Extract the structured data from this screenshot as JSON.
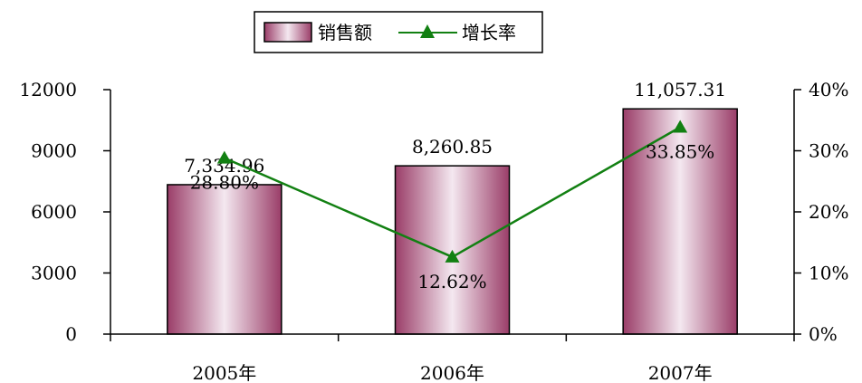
{
  "chart_data": {
    "type": "bar",
    "categories": [
      "2005年",
      "2006年",
      "2007年"
    ],
    "series": [
      {
        "name": "销售额",
        "type": "bar",
        "axis": "left",
        "values": [
          7334.96,
          8260.85,
          11057.31
        ],
        "labels": [
          "7,334.96",
          "8,260.85",
          "11,057.31"
        ]
      },
      {
        "name": "增长率",
        "type": "line",
        "axis": "right",
        "values": [
          28.8,
          12.62,
          33.85
        ],
        "labels": [
          "28.80%",
          "12.62%",
          "33.85%"
        ]
      }
    ],
    "left_axis": {
      "min": 0,
      "max": 12000,
      "ticks": [
        "0",
        "3000",
        "6000",
        "9000",
        "12000"
      ]
    },
    "right_axis": {
      "min": 0,
      "max": 40,
      "ticks": [
        "0%",
        "10%",
        "20%",
        "30%",
        "40%"
      ]
    },
    "legend_position": "top-center",
    "grid": false,
    "colors": {
      "bar_edge": "#9a3d68",
      "bar_center": "#f4e8f0",
      "line": "#128012"
    }
  }
}
